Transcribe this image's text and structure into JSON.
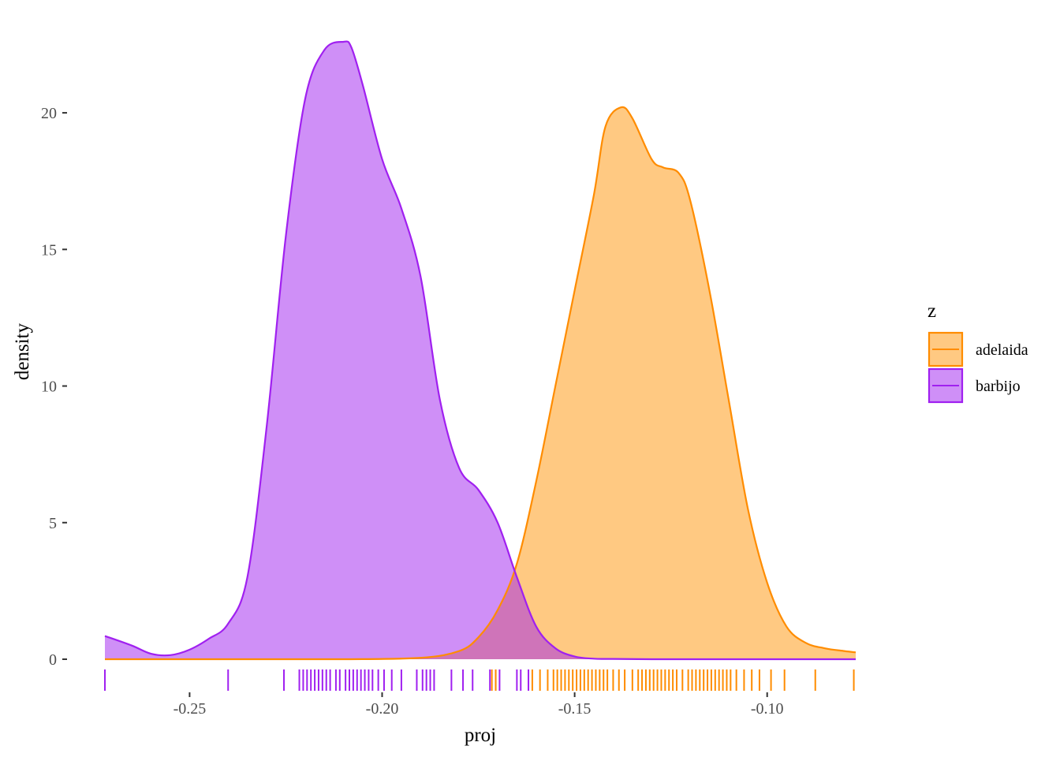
{
  "chart_data": {
    "type": "area",
    "xlabel": "proj",
    "ylabel": "density",
    "xlim": [
      -0.272,
      -0.077
    ],
    "ylim": [
      0,
      22.6
    ],
    "x_ticks": [
      -0.25,
      -0.2,
      -0.15,
      -0.1
    ],
    "x_tick_labels": [
      "-0.25",
      "-0.20",
      "-0.15",
      "-0.10"
    ],
    "y_ticks": [
      0,
      5,
      10,
      15,
      20
    ],
    "y_tick_labels": [
      "0",
      "5",
      "10",
      "15",
      "20"
    ],
    "grid": false,
    "legend": {
      "title": "z",
      "placement": "right",
      "entries": [
        {
          "label": "adelaida",
          "fill": "#FFA52F",
          "line": "#FF8C00"
        },
        {
          "label": "barbijo",
          "fill": "#A020F0",
          "line": "#A020F0"
        }
      ]
    },
    "series": [
      {
        "name": "adelaida",
        "fill": "#FFA52F",
        "fill_opacity": 0.6,
        "line": "#FF8C00",
        "x": [
          -0.272,
          -0.25,
          -0.23,
          -0.21,
          -0.19,
          -0.18,
          -0.175,
          -0.17,
          -0.165,
          -0.16,
          -0.155,
          -0.15,
          -0.145,
          -0.142,
          -0.138,
          -0.135,
          -0.13,
          -0.127,
          -0.123,
          -0.12,
          -0.115,
          -0.11,
          -0.105,
          -0.1,
          -0.095,
          -0.09,
          -0.085,
          -0.08,
          -0.077
        ],
        "y": [
          0,
          0,
          0,
          0,
          0.05,
          0.3,
          0.8,
          1.8,
          3.5,
          6.5,
          10.0,
          13.5,
          17.0,
          19.5,
          20.2,
          19.8,
          18.3,
          18.0,
          17.8,
          16.8,
          13.5,
          9.5,
          5.5,
          2.8,
          1.2,
          0.6,
          0.4,
          0.3,
          0.25
        ]
      },
      {
        "name": "barbijo",
        "fill": "#A020F0",
        "fill_opacity": 0.5,
        "line": "#A020F0",
        "x": [
          -0.272,
          -0.265,
          -0.26,
          -0.255,
          -0.25,
          -0.245,
          -0.24,
          -0.235,
          -0.23,
          -0.225,
          -0.22,
          -0.215,
          -0.21,
          -0.208,
          -0.205,
          -0.2,
          -0.195,
          -0.19,
          -0.185,
          -0.18,
          -0.175,
          -0.17,
          -0.165,
          -0.16,
          -0.155,
          -0.15,
          -0.145,
          -0.14,
          -0.13,
          -0.12,
          -0.1,
          -0.077
        ],
        "y": [
          0.85,
          0.5,
          0.2,
          0.15,
          0.35,
          0.75,
          1.3,
          3.0,
          8.5,
          15.5,
          20.5,
          22.3,
          22.6,
          22.4,
          21.0,
          18.3,
          16.5,
          14.0,
          9.5,
          7.0,
          6.2,
          5.0,
          3.0,
          1.2,
          0.4,
          0.1,
          0.02,
          0.01,
          0,
          0,
          0,
          0
        ]
      }
    ],
    "rug": {
      "barbijo": [
        -0.272,
        -0.24,
        -0.2255,
        -0.2215,
        -0.2205,
        -0.2195,
        -0.2185,
        -0.2175,
        -0.2165,
        -0.2155,
        -0.2145,
        -0.2135,
        -0.212,
        -0.211,
        -0.2095,
        -0.2085,
        -0.2075,
        -0.2065,
        -0.2055,
        -0.2045,
        -0.2035,
        -0.2025,
        -0.201,
        -0.1995,
        -0.1975,
        -0.195,
        -0.191,
        -0.1895,
        -0.1885,
        -0.1875,
        -0.1865,
        -0.182,
        -0.179,
        -0.1765,
        -0.172,
        -0.1705,
        -0.1695,
        -0.165,
        -0.164,
        -0.162
      ],
      "adelaida": [
        -0.1715,
        -0.1705,
        -0.161,
        -0.159,
        -0.157,
        -0.1555,
        -0.1545,
        -0.1535,
        -0.1525,
        -0.1515,
        -0.1505,
        -0.1495,
        -0.1485,
        -0.1475,
        -0.1465,
        -0.1455,
        -0.1445,
        -0.1435,
        -0.1425,
        -0.1415,
        -0.14,
        -0.1385,
        -0.137,
        -0.135,
        -0.1335,
        -0.1325,
        -0.1315,
        -0.1305,
        -0.1295,
        -0.1285,
        -0.1275,
        -0.1265,
        -0.1255,
        -0.1245,
        -0.1235,
        -0.122,
        -0.1205,
        -0.1195,
        -0.1185,
        -0.1175,
        -0.1165,
        -0.1155,
        -0.1145,
        -0.1135,
        -0.1125,
        -0.1115,
        -0.1105,
        -0.1095,
        -0.108,
        -0.106,
        -0.104,
        -0.102,
        -0.099,
        -0.0955,
        -0.0875,
        -0.0775
      ]
    }
  }
}
